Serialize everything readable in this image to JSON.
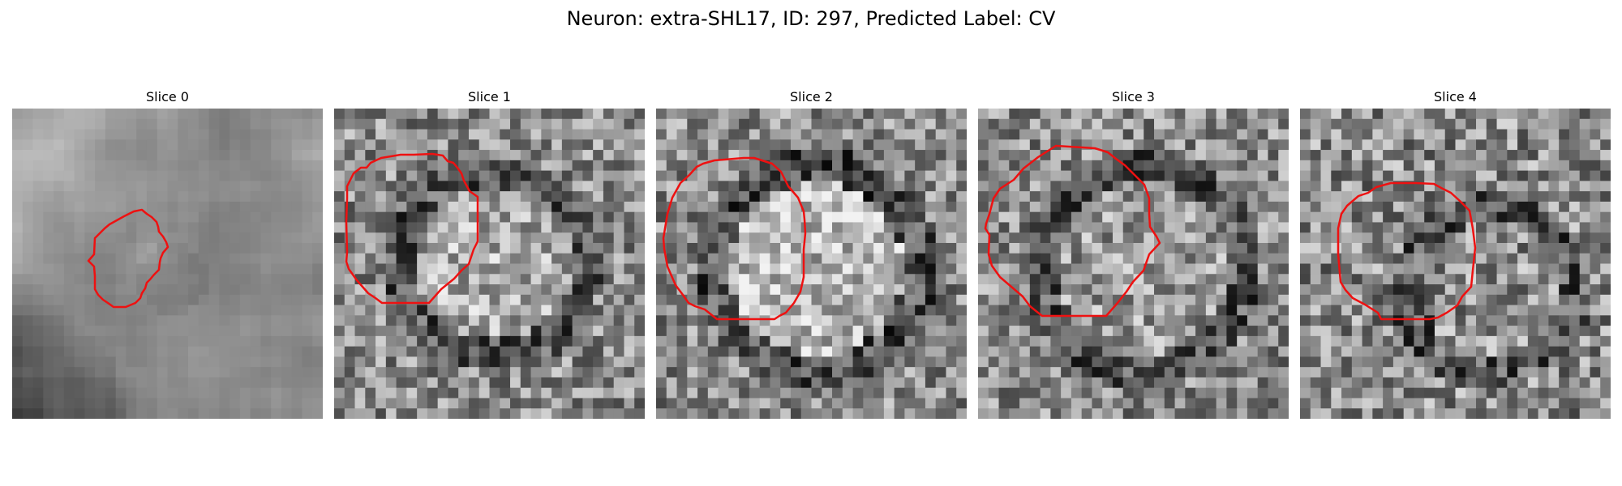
{
  "figure": {
    "suptitle": "Neuron: extra-SHL17, ID: 297, Predicted Label: CV",
    "outline_color": "#ee1111",
    "colormap": "grayscale"
  },
  "slices": [
    {
      "title": "Slice 0",
      "seed": 11
    },
    {
      "title": "Slice 1",
      "seed": 23
    },
    {
      "title": "Slice 2",
      "seed": 37
    },
    {
      "title": "Slice 3",
      "seed": 41
    },
    {
      "title": "Slice 4",
      "seed": 59
    }
  ]
}
